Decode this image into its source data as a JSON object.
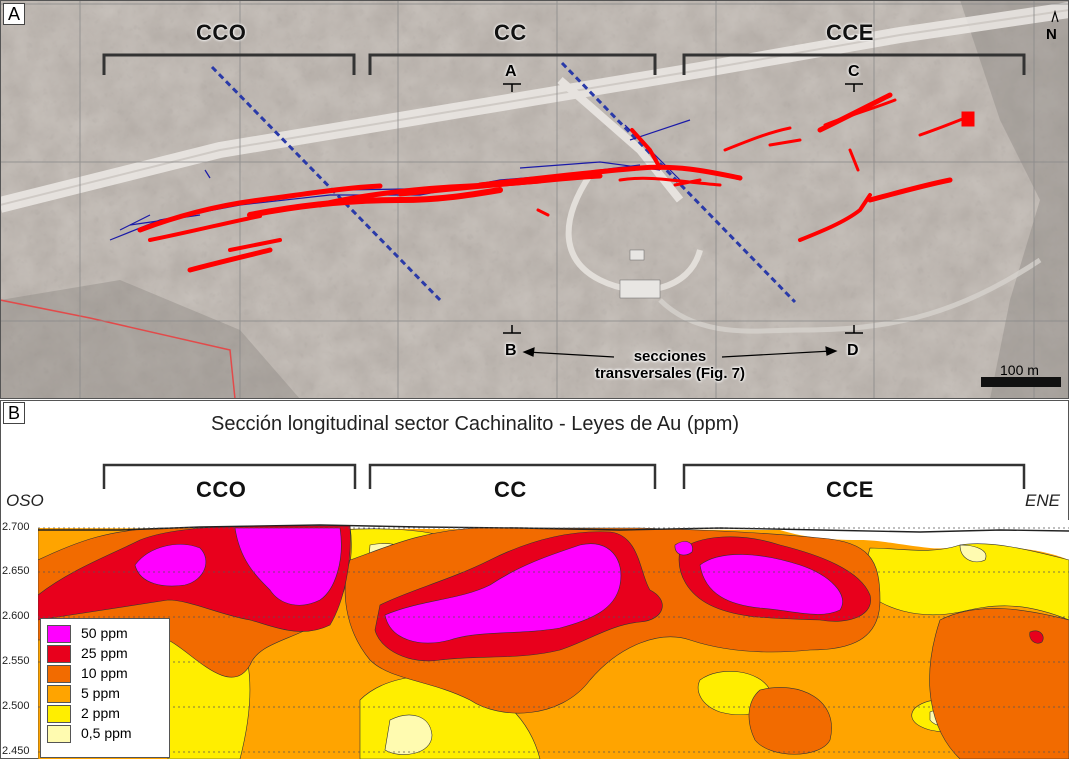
{
  "panel_a": {
    "letter": "A",
    "sectors": [
      "CCO",
      "CC",
      "CCE"
    ],
    "north": "N",
    "section_markers": [
      "A",
      "B",
      "C",
      "D"
    ],
    "note_line1": "secciones",
    "note_line2": "transversales (Fig. 7)",
    "scale_bar": "100 m"
  },
  "panel_b": {
    "letter": "B",
    "title": "Sección longitudinal sector Cachinalito - Leyes de Au (ppm)",
    "sectors": [
      "CCO",
      "CC",
      "CCE"
    ],
    "left_dir": "OSO",
    "right_dir": "ENE",
    "y_ticks": [
      "2.700",
      "2.650",
      "2.600",
      "2.550",
      "2.500",
      "2.450"
    ],
    "legend": [
      {
        "label": "50 ppm",
        "color": "#ff00ff"
      },
      {
        "label": "25 ppm",
        "color": "#e8001c"
      },
      {
        "label": "10 ppm",
        "color": "#f26b00"
      },
      {
        "label": "5 ppm",
        "color": "#ffa400"
      },
      {
        "label": "2 ppm",
        "color": "#ffee00"
      },
      {
        "label": "0,5 ppm",
        "color": "#fffbb0"
      }
    ]
  },
  "colors": {
    "veins": "#ff0000",
    "structures": "#1a1aa8",
    "dashed_faults": "#2a3aa8",
    "road": "#e9e6e2",
    "map_background": "#b3aca6"
  }
}
